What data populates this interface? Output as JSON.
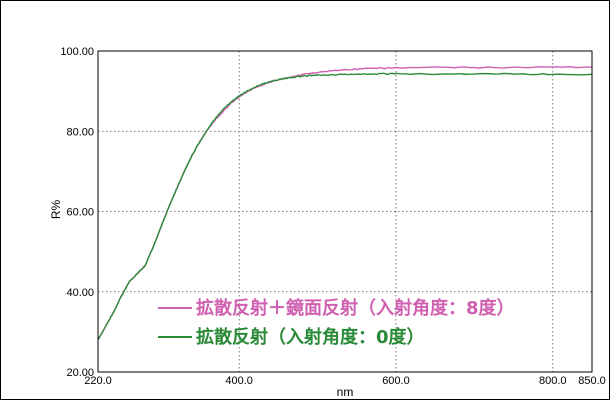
{
  "chart_data": {
    "type": "line",
    "xlabel": "nm",
    "ylabel": "R%",
    "xlim": [
      220,
      850
    ],
    "ylim": [
      20,
      100
    ],
    "x_ticks": [
      220,
      400,
      600,
      800,
      850
    ],
    "x_tick_labels": [
      "220.0",
      "400.0",
      "600.0",
      "800.0",
      "850.0"
    ],
    "y_ticks": [
      20,
      40,
      60,
      80,
      100
    ],
    "y_tick_labels": [
      "20.00",
      "40.00",
      "60.00",
      "80.00",
      "100.00"
    ],
    "grid": true,
    "grid_style": "dotted",
    "legend_position": "bottom-right",
    "series": [
      {
        "name": "拡散反射＋鏡面反射（入射角度：8度）",
        "color": "#d060b0",
        "x": [
          220,
          230,
          240,
          250,
          260,
          270,
          280,
          290,
          300,
          310,
          320,
          330,
          340,
          350,
          360,
          370,
          380,
          390,
          400,
          410,
          420,
          430,
          440,
          450,
          460,
          470,
          480,
          490,
          500,
          520,
          540,
          560,
          580,
          600,
          650,
          700,
          750,
          800,
          850
        ],
        "y": [
          28,
          31.5,
          35,
          39,
          42.5,
          44.5,
          46.5,
          51,
          56,
          61,
          65.5,
          70,
          74,
          77.5,
          80.5,
          83,
          85,
          87,
          88.5,
          89.8,
          90.8,
          91.6,
          92.3,
          92.8,
          93.3,
          93.7,
          94.1,
          94.4,
          94.7,
          95.1,
          95.4,
          95.6,
          95.7,
          95.8,
          95.9,
          95.9,
          95.9,
          96.0,
          96.0
        ]
      },
      {
        "name": "拡散反射（入射角度：0度）",
        "color": "#2a8a38",
        "x": [
          220,
          230,
          240,
          250,
          260,
          270,
          280,
          290,
          300,
          310,
          320,
          330,
          340,
          350,
          360,
          370,
          380,
          390,
          400,
          410,
          420,
          430,
          440,
          450,
          460,
          470,
          480,
          490,
          500,
          520,
          540,
          560,
          580,
          600,
          650,
          700,
          750,
          800,
          850
        ],
        "y": [
          28,
          31.5,
          35,
          39,
          42.5,
          44.5,
          46.5,
          51,
          56,
          61,
          65.5,
          70,
          74,
          77.5,
          80.5,
          83.3,
          85.5,
          87.3,
          88.8,
          90,
          91,
          91.8,
          92.4,
          92.9,
          93.2,
          93.5,
          93.7,
          93.9,
          94.0,
          94.1,
          94.2,
          94.2,
          94.3,
          94.3,
          94.3,
          94.3,
          94.3,
          94.2,
          94.2
        ]
      }
    ]
  }
}
